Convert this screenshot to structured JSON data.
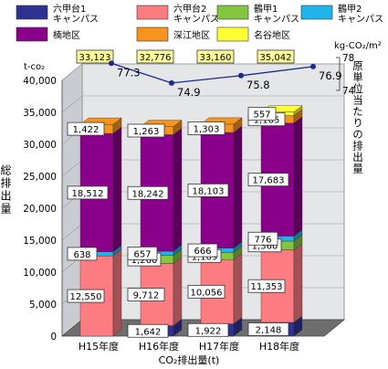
{
  "chart_data": {
    "type": "bar",
    "stacked": true,
    "categories": [
      "H15年度",
      "H16年度",
      "H17年度",
      "H18年度"
    ],
    "xlabel": "CO₂排出量(t)",
    "ylabel": "総排出量",
    "y_unit": "t-co₂",
    "ylim": [
      0,
      40000
    ],
    "y_ticks": [
      0,
      5000,
      10000,
      15000,
      20000,
      25000,
      30000,
      35000,
      40000
    ],
    "series": [
      {
        "name": "六甲台1キャンパス",
        "legend_lines": [
          "六甲台1",
          "キャンパス"
        ],
        "color": "#2e3192",
        "values": [
          0,
          1642,
          1922,
          2148
        ]
      },
      {
        "name": "六甲台2キャンパス",
        "legend_lines": [
          "六甲台2",
          "キャンパス"
        ],
        "color": "#fc7c82",
        "values": [
          12550,
          9712,
          10056,
          11353
        ]
      },
      {
        "name": "鶴甲1キャンパス",
        "legend_lines": [
          "鶴甲1",
          "キャンパス"
        ],
        "color": "#86c540",
        "values": [
          0,
          1260,
          1109,
          1360
        ]
      },
      {
        "name": "鶴甲2キャンパス",
        "legend_lines": [
          "鶴甲2",
          "キャンパス"
        ],
        "color": "#1fb4ea",
        "values": [
          638,
          657,
          666,
          776
        ]
      },
      {
        "name": "楠地区",
        "legend_lines": [
          "楠地区"
        ],
        "color": "#8b008b",
        "values": [
          18512,
          18242,
          18103,
          17683
        ]
      },
      {
        "name": "深江地区",
        "legend_lines": [
          "深江地区"
        ],
        "color": "#f7941d",
        "values": [
          1422,
          1263,
          1303,
          1165
        ]
      },
      {
        "name": "名谷地区",
        "legend_lines": [
          "名谷地区"
        ],
        "color": "#ffff33",
        "values": [
          0,
          0,
          0,
          557
        ]
      }
    ],
    "segment_labels": [
      [
        null,
        "12,550",
        null,
        "638",
        "18,512",
        "1,422",
        null
      ],
      [
        "1,642",
        "9,712",
        "1,260",
        "657",
        "18,242",
        "1,263",
        null
      ],
      [
        "1,922",
        "10,056",
        "1,109",
        "666",
        "18,103",
        "1,303",
        null
      ],
      [
        "2,148",
        "11,353",
        "1,360",
        "776",
        "17,683",
        "1,165",
        "557"
      ]
    ],
    "totals": [
      33123,
      32776,
      33160,
      35042
    ],
    "total_labels": [
      "33,123",
      "32,776",
      "33,160",
      "35,042"
    ],
    "secondary_axis": {
      "label": "原単位当たりの排出量",
      "unit": "kg-CO₂/m²",
      "range": [
        74,
        78
      ],
      "ticks": [
        74,
        78
      ]
    },
    "intensity_series": {
      "values": [
        77.3,
        74.9,
        75.8,
        76.9
      ],
      "labels": [
        "77.3",
        "74.9",
        "75.8",
        "76.9"
      ],
      "color": "#1a2a8c"
    }
  }
}
